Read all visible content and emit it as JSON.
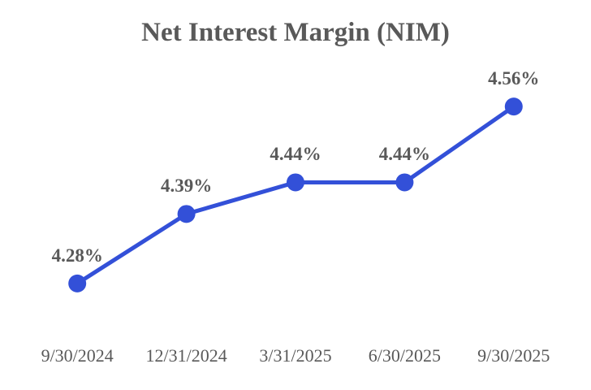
{
  "chart_data": {
    "type": "line",
    "title": "Net Interest Margin (NIM)",
    "categories": [
      "9/30/2024",
      "12/31/2024",
      "3/31/2025",
      "6/30/2025",
      "9/30/2025"
    ],
    "values": [
      4.28,
      4.39,
      4.44,
      4.44,
      4.56
    ],
    "point_labels": [
      "4.28%",
      "4.39%",
      "4.44%",
      "4.44%",
      "4.56%"
    ],
    "series_name": "Net Interest Margin",
    "xlabel": "",
    "ylabel": "",
    "ylim": [
      4.24,
      4.6
    ],
    "grid": false,
    "legend": false,
    "axes_visible": false,
    "colors": {
      "line": "#3350D8",
      "marker": "#3350D8",
      "text": "#595959",
      "background": "#ffffff"
    }
  }
}
